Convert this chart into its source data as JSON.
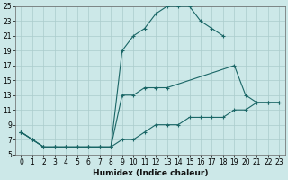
{
  "xlabel": "Humidex (Indice chaleur)",
  "bg_color": "#cce8e8",
  "grid_color": "#aacccc",
  "line_color": "#1a6666",
  "xlim": [
    -0.5,
    23.5
  ],
  "ylim": [
    5,
    25
  ],
  "xticks": [
    0,
    1,
    2,
    3,
    4,
    5,
    6,
    7,
    8,
    9,
    10,
    11,
    12,
    13,
    14,
    15,
    16,
    17,
    18,
    19,
    20,
    21,
    22,
    23
  ],
  "yticks": [
    5,
    7,
    9,
    11,
    13,
    15,
    17,
    19,
    21,
    23,
    25
  ],
  "line1_x": [
    0,
    1,
    2,
    3,
    4,
    5,
    6,
    7,
    8,
    9,
    10,
    11,
    12,
    13,
    14,
    15,
    16,
    17,
    18
  ],
  "line1_y": [
    8,
    7,
    6,
    6,
    6,
    6,
    6,
    6,
    6,
    19,
    21,
    22,
    24,
    25,
    25,
    25,
    23,
    22,
    21
  ],
  "line2_x": [
    0,
    1,
    2,
    3,
    4,
    5,
    6,
    7,
    8,
    9,
    10,
    11,
    12,
    13,
    19,
    20,
    21,
    22,
    23
  ],
  "line2_y": [
    8,
    7,
    6,
    6,
    6,
    6,
    6,
    6,
    6,
    13,
    13,
    14,
    14,
    14,
    17,
    13,
    12,
    12,
    12
  ],
  "line3_x": [
    0,
    1,
    2,
    3,
    4,
    5,
    6,
    7,
    8,
    9,
    10,
    11,
    12,
    13,
    14,
    15,
    16,
    17,
    18,
    19,
    20,
    21,
    22,
    23
  ],
  "line3_y": [
    8,
    7,
    6,
    6,
    6,
    6,
    6,
    6,
    6,
    7,
    7,
    8,
    9,
    9,
    9,
    10,
    10,
    10,
    10,
    11,
    11,
    12,
    12,
    12
  ]
}
